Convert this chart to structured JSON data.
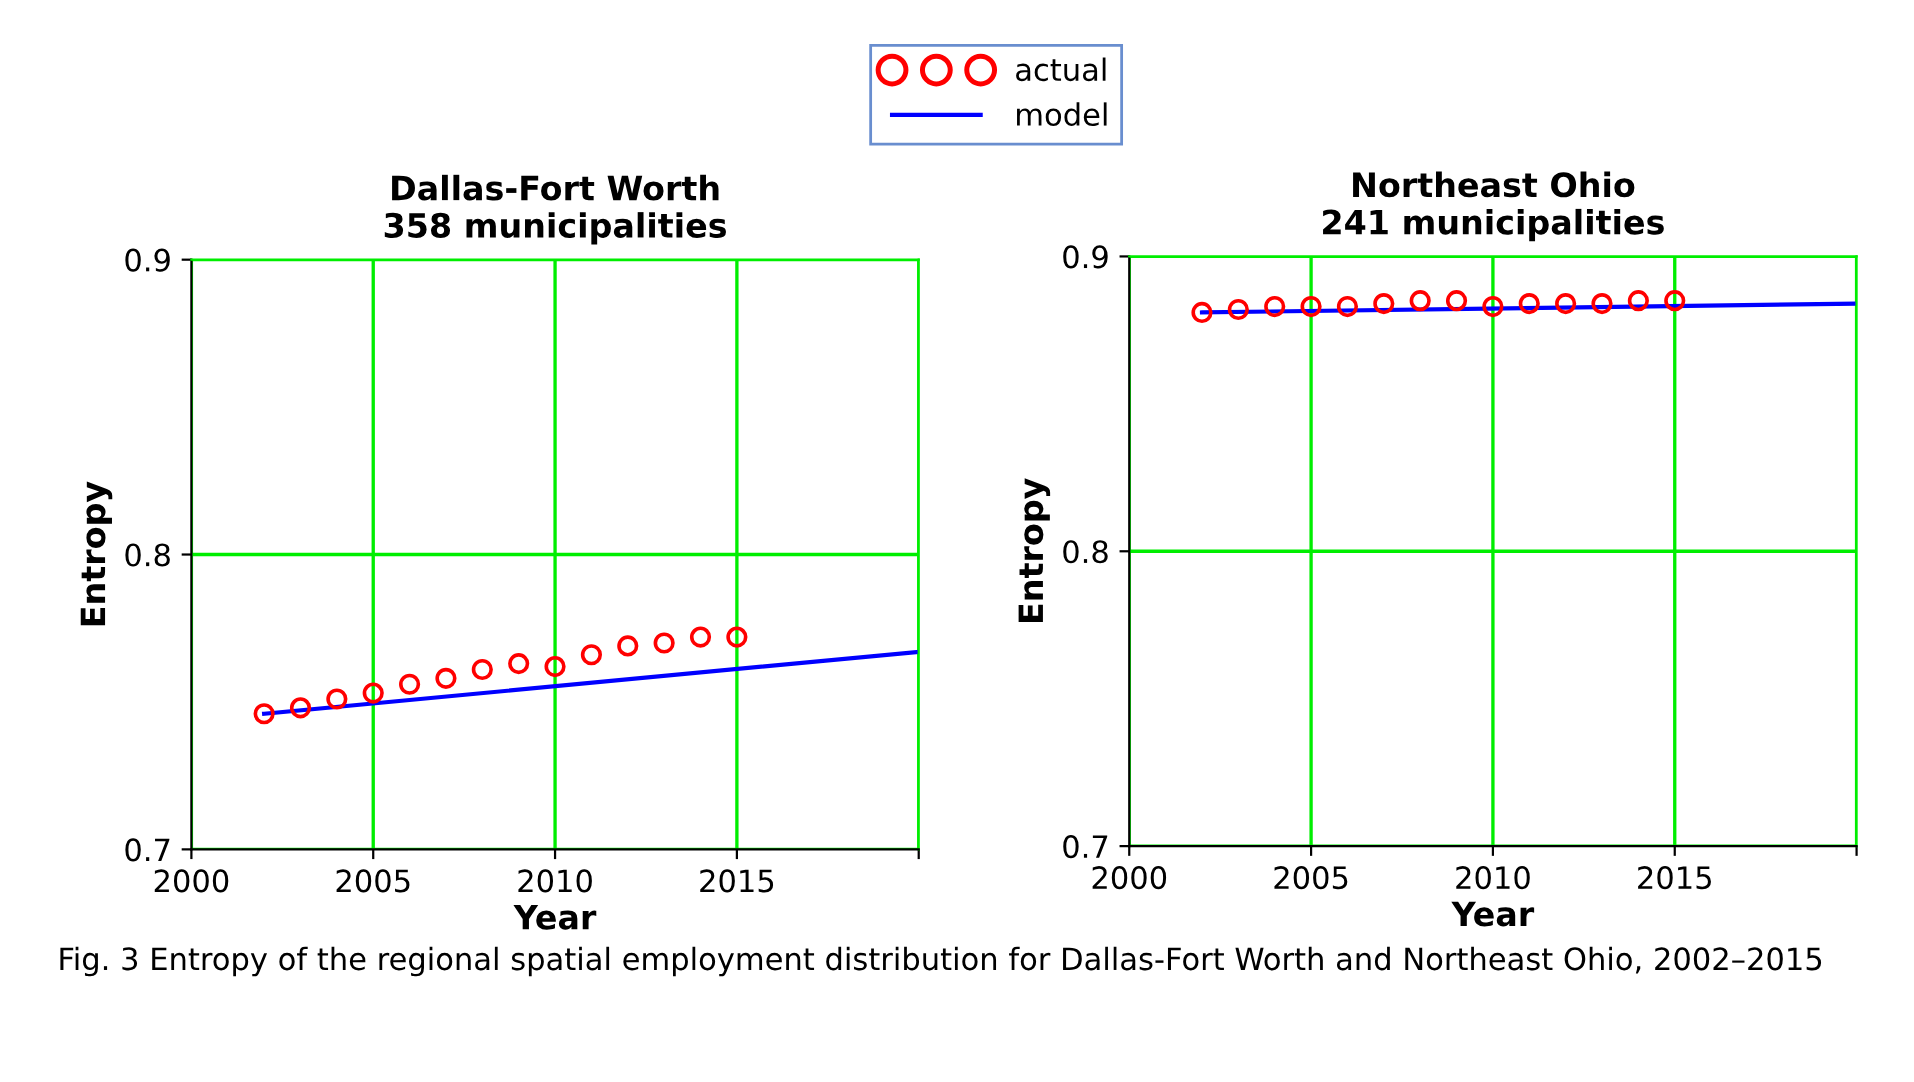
{
  "chart_data": [
    {
      "type": "scatter",
      "title": "Dallas-Fort Worth",
      "subtitle": "358 municipalities",
      "xlabel": "Year",
      "ylabel": "Entropy",
      "xlim": [
        2000,
        2020
      ],
      "xticks": [
        2000,
        2005,
        2010,
        2015,
        {
          "value": 2020,
          "label": null
        }
      ],
      "ylim": [
        0.7,
        0.9
      ],
      "yticks": [
        0.7,
        0.8,
        0.9
      ],
      "grid": true,
      "legend": "top right",
      "series": [
        {
          "name": "actual",
          "marker": "circle",
          "color": "#ff0000",
          "x": [
            2002,
            2003,
            2004,
            2005,
            2006,
            2007,
            2008,
            2009,
            2010,
            2011,
            2012,
            2013,
            2014,
            2015
          ],
          "values": [
            0.746,
            0.748,
            0.751,
            0.753,
            0.756,
            0.758,
            0.761,
            0.763,
            0.762,
            0.766,
            0.769,
            0.77,
            0.772,
            0.772
          ]
        },
        {
          "name": "model",
          "type": "line",
          "color": "#0000ff",
          "x": [
            2002,
            2020
          ],
          "values": [
            0.746,
            0.767
          ]
        }
      ]
    },
    {
      "type": "scatter",
      "title": "Northeast Ohio",
      "subtitle": "241 municipalities",
      "xlabel": "Year",
      "ylabel": "Entropy",
      "xlim": [
        2000,
        2020
      ],
      "xticks": [
        2000,
        2005,
        2010,
        2015,
        {
          "value": 2020,
          "label": null
        }
      ],
      "ylim": [
        0.7,
        0.9
      ],
      "yticks": [
        0.7,
        0.8,
        0.9
      ],
      "grid": true,
      "annotations": [
        "Fig. 3 Entropy of the regional spatial employment distribution for Dallas-Fort Worth and Northeast Ohio, 2002–2015"
      ],
      "series": [
        {
          "marker": "circle",
          "color": "#ff0000",
          "x": [
            2002,
            2003,
            2004,
            2005,
            2006,
            2007,
            2008,
            2009,
            2010,
            2011,
            2012,
            2013,
            2014,
            2015
          ],
          "values": [
            0.881,
            0.882,
            0.883,
            0.883,
            0.883,
            0.884,
            0.885,
            0.885,
            0.883,
            0.884,
            0.884,
            0.884,
            0.885,
            0.885
          ]
        },
        {
          "type": "line",
          "color": "#0000ff",
          "x": [
            2002,
            2020
          ],
          "values": [
            0.881,
            0.884
          ]
        }
      ]
    }
  ]
}
